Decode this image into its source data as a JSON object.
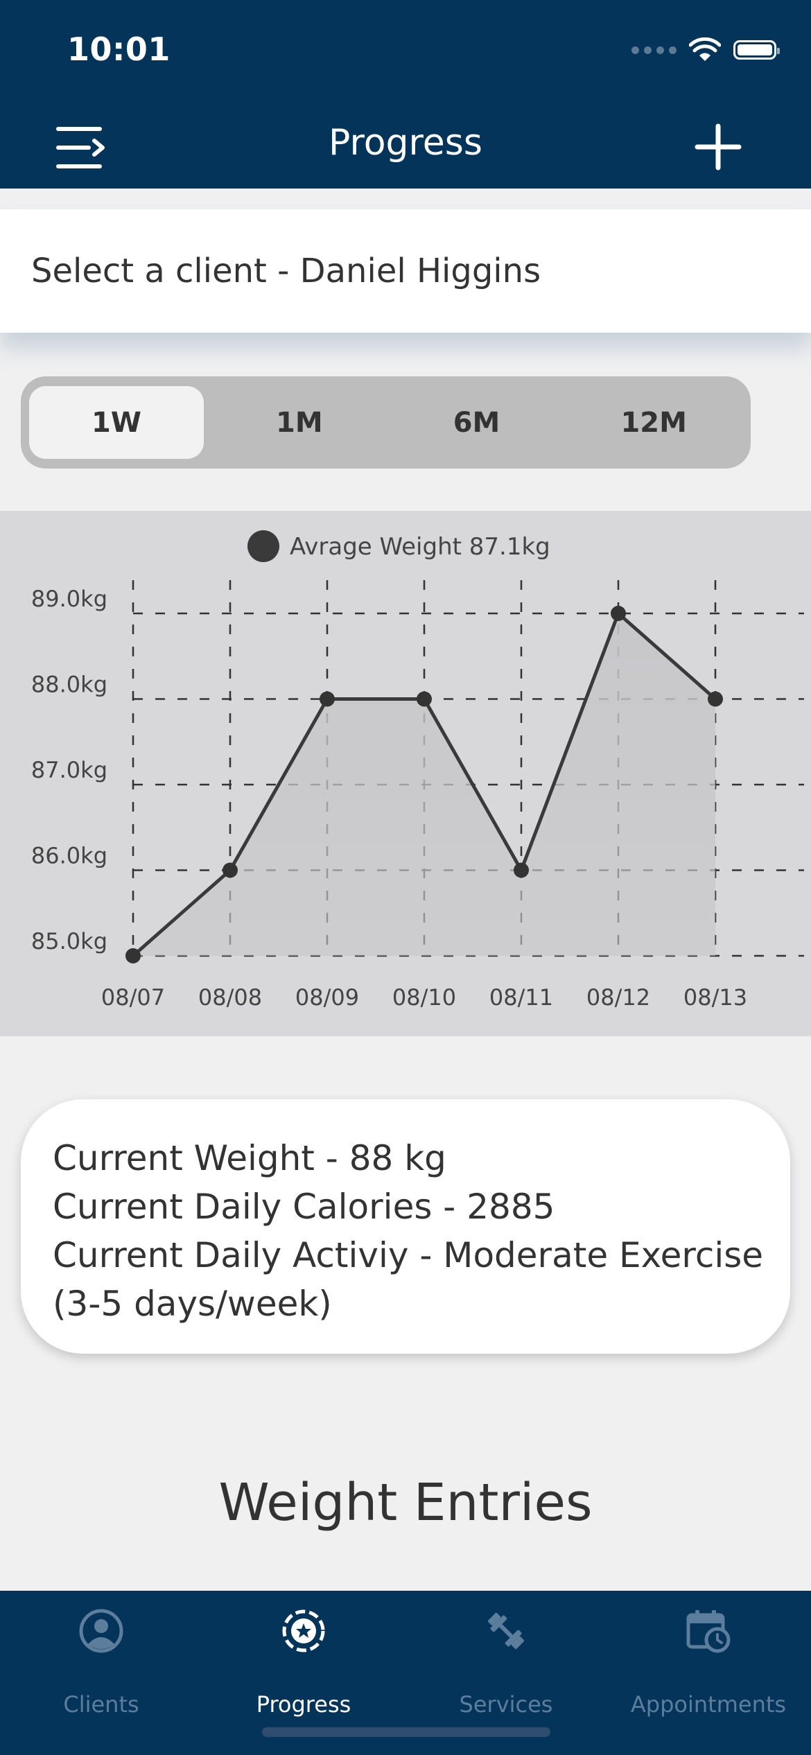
{
  "status_bar": {
    "time": "10:01"
  },
  "nav": {
    "title": "Progress",
    "menu_icon": "menu-icon",
    "add_icon": "plus-icon"
  },
  "client_select": {
    "label": "Select a client - Daniel Higgins"
  },
  "segments": [
    {
      "label": "1W",
      "active": true
    },
    {
      "label": "1M",
      "active": false
    },
    {
      "label": "6M",
      "active": false
    },
    {
      "label": "12M",
      "active": false
    }
  ],
  "chart_data": {
    "type": "area",
    "legend": "Avrage Weight 87.1kg",
    "categories": [
      "08/07",
      "08/08",
      "08/09",
      "08/10",
      "08/11",
      "08/12",
      "08/13"
    ],
    "values": [
      85,
      86,
      88,
      88,
      86,
      89,
      88
    ],
    "y_ticks": [
      "85.0kg",
      "86.0kg",
      "87.0kg",
      "88.0kg",
      "89.0kg"
    ],
    "ylim": [
      85,
      89
    ],
    "grid": true,
    "legend_position": "top-center"
  },
  "stats": {
    "weight": "Current Weight - 88 kg",
    "calories": "Current Daily Calories - 2885",
    "activity_line1": "Current Daily Activiy - Moderate Exercise",
    "activity_line2": "(3-5 days/week)"
  },
  "entries_title": "Weight Entries",
  "tabbar": {
    "tabs": [
      {
        "label": "Clients",
        "icon": "user-circle-icon",
        "active": false
      },
      {
        "label": "Progress",
        "icon": "star-badge-icon",
        "active": true
      },
      {
        "label": "Services",
        "icon": "dumbbell-icon",
        "active": false
      },
      {
        "label": "Appointments",
        "icon": "calendar-clock-icon",
        "active": false
      }
    ]
  }
}
